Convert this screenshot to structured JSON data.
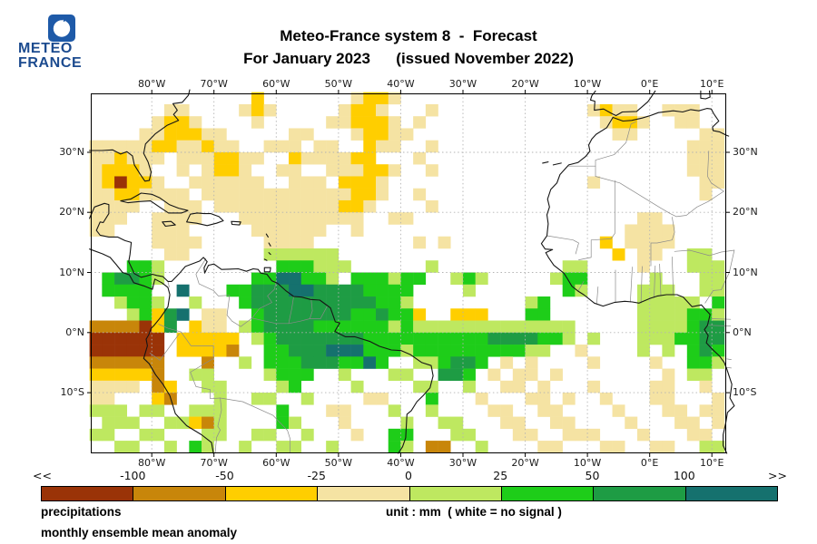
{
  "header": {
    "logo_line1": "METEO",
    "logo_line2": "FRANCE",
    "logo_square_color": "#1E5AA8",
    "logo_text_color": "#1C4B8F",
    "title_line1": "Meteo-France system 8  -  Forecast",
    "title_line2": "For January 2023      (issued November 2022)"
  },
  "footer": {
    "label_line1": "precipitations",
    "label_line2": "monthly ensemble mean anomaly",
    "unit_note": "unit : mm  ( white = no signal )"
  },
  "colorbar": {
    "left_arrow": "<<",
    "right_arrow": ">>",
    "tick_labels": [
      "-100",
      "-50",
      "-25",
      "0",
      "25",
      "50",
      "100"
    ],
    "segment_colors": [
      "#9A3307",
      "#C8860A",
      "#FFCE00",
      "#F5E3A3",
      "#BEE860",
      "#1ECD19",
      "#1E9C44",
      "#15716E"
    ]
  },
  "chart_data": {
    "type": "heatmap",
    "title": "Meteo-France system 8 - Forecast",
    "subtitle": "For January 2023 (issued November 2022)",
    "variable": "precipitations",
    "statistic": "monthly ensemble mean anomaly",
    "units": "mm",
    "no_signal": "white = no signal",
    "scale_breakpoints_mm": [
      -100,
      -50,
      -25,
      0,
      25,
      50,
      100
    ],
    "palette": {
      "1": "#9A3307",
      "2": "#C8860A",
      "3": "#FFCE00",
      "4": "#F5E3A3",
      "5": "#BEE860",
      "6": "#1ECD19",
      "7": "#1E9C44",
      "8": "#15716E"
    },
    "legend_ranges_mm": {
      "1": "< -100",
      "2": "-100 to -50",
      "3": "-50 to -25",
      "4": "-25 to 0",
      "5": "0 to 25",
      "6": "25 to 50",
      "7": "50 to 100",
      "8": "> 100"
    },
    "map_extent": {
      "lon_min": -89.8,
      "lon_max": 12.3,
      "lat_min": -20.1,
      "lat_max": 39.8
    },
    "lon_ticks": [
      {
        "lon": -80,
        "label": "80°W"
      },
      {
        "lon": -70,
        "label": "70°W"
      },
      {
        "lon": -60,
        "label": "60°W"
      },
      {
        "lon": -50,
        "label": "50°W"
      },
      {
        "lon": -40,
        "label": "40°W"
      },
      {
        "lon": -30,
        "label": "30°W"
      },
      {
        "lon": -20,
        "label": "20°W"
      },
      {
        "lon": -10,
        "label": "10°W"
      },
      {
        "lon": 0,
        "label": "0°E"
      },
      {
        "lon": 10,
        "label": "10°E"
      }
    ],
    "lat_ticks": [
      {
        "lat": 30,
        "label": "30°N"
      },
      {
        "lat": 20,
        "label": "20°N"
      },
      {
        "lat": 10,
        "label": "10°N"
      },
      {
        "lat": 0,
        "label": "0°N"
      },
      {
        "lat": -10,
        "label": "10°S"
      }
    ],
    "grid": {
      "note": "2x2 degree anomaly cells, '.'=white no signal, digits map to palette",
      "lon_start": -90,
      "lat_start": 40,
      "cell_deg": 2,
      "cols": 51,
      "rows": [
        ".............3.......4334..........................",
        "......44....434.....4334...4............4344..444..",
        ".....4334....4.....443334.4..............4334..44..",
        "....4433344.....44...43344................44.....44",
        "444443344344..444.44..344..4....................444",
        "443444.4443344..3444433...4.....................444",
        "43334..4.4334..44..444334..4....................444",
        "431334..444444..444.3334................4........44",
        "44334444.444444444444334..4......................4.",
        "4444..444.4444444444334....4.......................",
        "444..4444...4444444444..44..................44.....",
        "44...444.....444444..4.....................4444....",
        ".....4444.....4444........4.4............3.4444....",
        "......44......555555......................3.44..55.",
        "...665.........666555......5..........55....4...555",
        ".67765.......6688665.666566..565.....566.....5...55",
        ".6666..8...667778877776666....5.......65....555..55",
        "..5665..5...67777777777665.........56.......55555.6",
        "...56378.44..67777777667663..333...66.......5555665",
        "2222137.344.567777666666565555555555555.....5555677",
        "111111.33333.56777777766666666667777665.5...5556677",
        "111111.33332..66777888666566666666655..4....5.5.676",
        "222222...2..5.6667776686..556776.4.4....4....4..665",
        "333332..55....5666..5...55..776.4.44.4........4.55.",
        "4444.23..55....56....5....55..5..44.4...4....44..4.",
        "44...32...5..55..5....44...6...4...44.4..4...44...4",
        "555.55..555....6...44...5..5....44..44....4...44.44",
        ".555..55325....65...4....5..55...44..44....4...44.4",
        "55..55...55..55..5...4..66...55...44..444...4...44.",
        "..55..5.65..5..55..5....65.22..5....44...44..44..55"
      ]
    }
  }
}
